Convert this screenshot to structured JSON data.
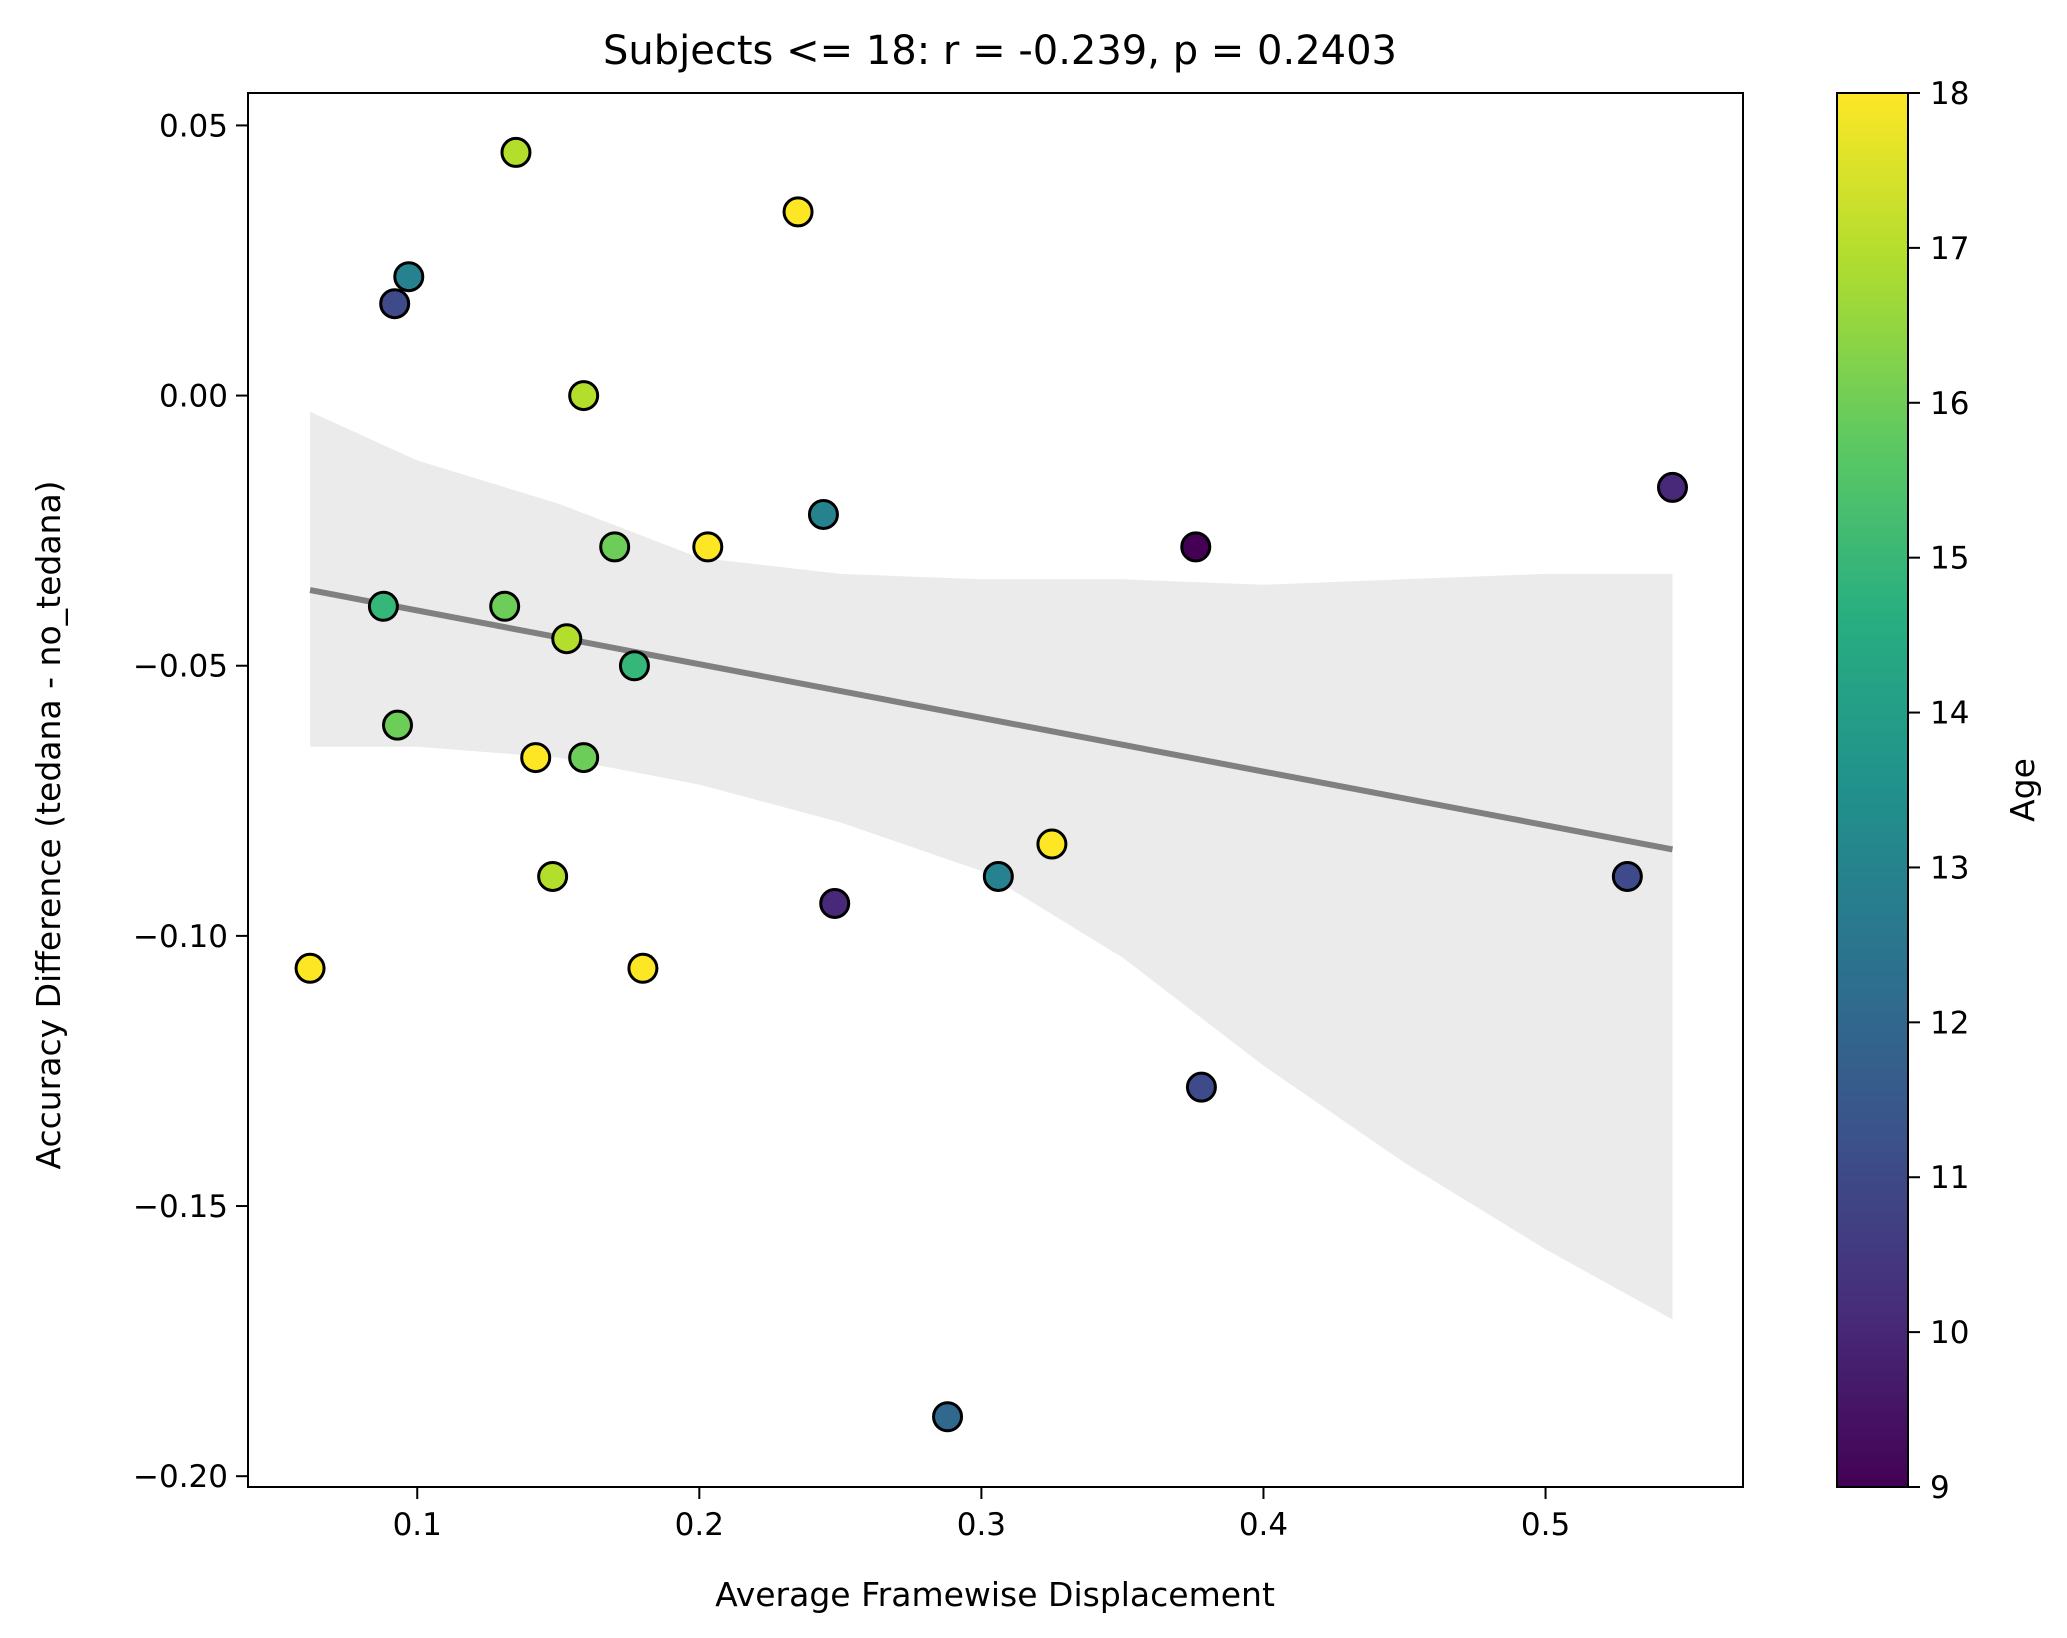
{
  "chart_data": {
    "type": "scatter",
    "title": "Subjects <= 18: r = -0.239, p = 0.2403",
    "xlabel": "Average Framewise Displacement",
    "ylabel": "Accuracy Difference (tedana - no_tedana)",
    "xlim": [
      0.04,
      0.57
    ],
    "ylim": [
      -0.202,
      0.056
    ],
    "x_ticks": [
      0.1,
      0.2,
      0.3,
      0.4,
      0.5
    ],
    "x_tick_labels": [
      "0.1",
      "0.2",
      "0.3",
      "0.4",
      "0.5"
    ],
    "y_ticks": [
      0.05,
      0.0,
      -0.05,
      -0.1,
      -0.15,
      -0.2
    ],
    "y_tick_labels": [
      "0.05",
      "0.00",
      "−0.05",
      "−0.10",
      "−0.15",
      "−0.20"
    ],
    "grid": false,
    "colorbar": {
      "label": "Age",
      "colormap": "viridis",
      "range": [
        9,
        18
      ],
      "ticks": [
        9,
        10,
        11,
        12,
        13,
        14,
        15,
        16,
        17,
        18
      ],
      "tick_labels": [
        "9",
        "10",
        "11",
        "12",
        "13",
        "14",
        "15",
        "16",
        "17",
        "18"
      ]
    },
    "points": [
      {
        "x": 0.135,
        "y": 0.045,
        "age": 17
      },
      {
        "x": 0.235,
        "y": 0.034,
        "age": 18
      },
      {
        "x": 0.097,
        "y": 0.022,
        "age": 13
      },
      {
        "x": 0.092,
        "y": 0.017,
        "age": 11
      },
      {
        "x": 0.159,
        "y": 0.0,
        "age": 17
      },
      {
        "x": 0.545,
        "y": -0.017,
        "age": 10
      },
      {
        "x": 0.244,
        "y": -0.022,
        "age": 13
      },
      {
        "x": 0.17,
        "y": -0.028,
        "age": 16
      },
      {
        "x": 0.203,
        "y": -0.028,
        "age": 18
      },
      {
        "x": 0.376,
        "y": -0.028,
        "age": 9
      },
      {
        "x": 0.088,
        "y": -0.039,
        "age": 15
      },
      {
        "x": 0.131,
        "y": -0.039,
        "age": 16
      },
      {
        "x": 0.153,
        "y": -0.045,
        "age": 17
      },
      {
        "x": 0.177,
        "y": -0.05,
        "age": 15
      },
      {
        "x": 0.093,
        "y": -0.061,
        "age": 16
      },
      {
        "x": 0.142,
        "y": -0.067,
        "age": 18
      },
      {
        "x": 0.159,
        "y": -0.067,
        "age": 16
      },
      {
        "x": 0.325,
        "y": -0.083,
        "age": 18
      },
      {
        "x": 0.148,
        "y": -0.089,
        "age": 17
      },
      {
        "x": 0.306,
        "y": -0.089,
        "age": 13
      },
      {
        "x": 0.529,
        "y": -0.089,
        "age": 11
      },
      {
        "x": 0.248,
        "y": -0.094,
        "age": 10
      },
      {
        "x": 0.062,
        "y": -0.106,
        "age": 18
      },
      {
        "x": 0.18,
        "y": -0.106,
        "age": 18
      },
      {
        "x": 0.378,
        "y": -0.128,
        "age": 11
      },
      {
        "x": 0.288,
        "y": -0.189,
        "age": 12
      }
    ],
    "regression": {
      "x": [
        0.062,
        0.545
      ],
      "y": [
        -0.036,
        -0.084
      ],
      "color": "#808080"
    },
    "confidence_band": {
      "color": "#ebebeb",
      "x": [
        0.062,
        0.1,
        0.15,
        0.2,
        0.25,
        0.3,
        0.35,
        0.4,
        0.45,
        0.5,
        0.545
      ],
      "upper": [
        -0.003,
        -0.012,
        -0.02,
        -0.03,
        -0.033,
        -0.034,
        -0.034,
        -0.035,
        -0.034,
        -0.033,
        -0.033
      ],
      "lower": [
        -0.065,
        -0.065,
        -0.067,
        -0.072,
        -0.079,
        -0.088,
        -0.104,
        -0.124,
        -0.142,
        -0.158,
        -0.171
      ]
    },
    "marker_edge_color": "#000000"
  }
}
